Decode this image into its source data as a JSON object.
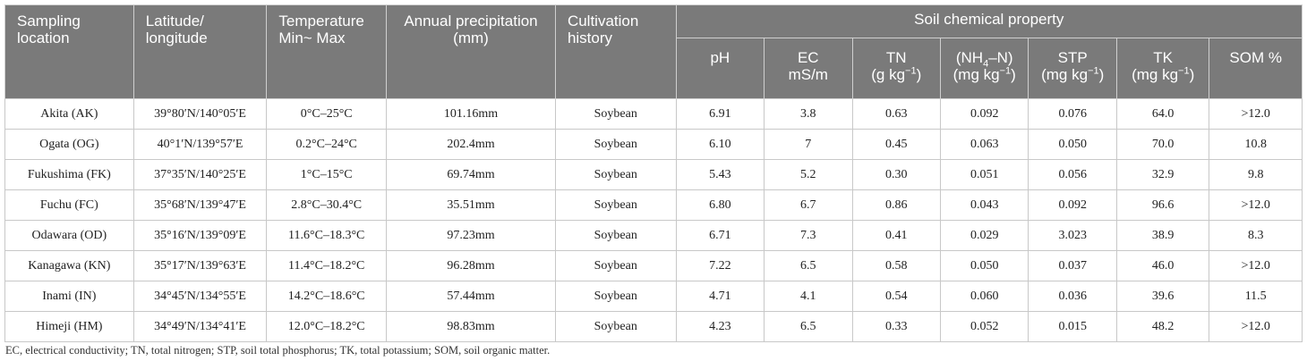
{
  "header": {
    "sampling_location": "Sampling location",
    "lat_long": "Latitude/ longitude",
    "temperature": "Temperature Min~ Max",
    "precipitation": "Annual precipitation (mm)",
    "cultivation": "Cultivation history",
    "soil_group": "Soil chemical property",
    "ph": "pH",
    "ec_1": "EC",
    "ec_2": "mS/m",
    "tn_1": "TN",
    "tn_2": "(g kg",
    "nh4_1a": "(NH",
    "nh4_sub": "4",
    "nh4_1b": "–N)",
    "nh4_2": "(mg kg",
    "stp_1": "STP",
    "stp_2": "(mg kg",
    "tk_1": "TK",
    "tk_2": "(mg kg",
    "sup": "−1",
    "close_paren": ")",
    "som": "SOM %"
  },
  "rows": [
    {
      "location": "Akita (AK)",
      "latlong": "39°80′N/140°05′E",
      "temp": "0°C–25°C",
      "precip": "101.16mm",
      "cultivation": "Soybean",
      "ph": "6.91",
      "ec": "3.8",
      "tn": "0.63",
      "nh4": "0.092",
      "stp": "0.076",
      "tk": "64.0",
      "som": ">12.0"
    },
    {
      "location": "Ogata (OG)",
      "latlong": "40°1′N/139°57′E",
      "temp": "0.2°C–24°C",
      "precip": "202.4mm",
      "cultivation": "Soybean",
      "ph": "6.10",
      "ec": "7",
      "tn": "0.45",
      "nh4": "0.063",
      "stp": "0.050",
      "tk": "70.0",
      "som": "10.8"
    },
    {
      "location": "Fukushima (FK)",
      "latlong": "37°35′N/140°25′E",
      "temp": "1°C–15°C",
      "precip": "69.74mm",
      "cultivation": "Soybean",
      "ph": "5.43",
      "ec": "5.2",
      "tn": "0.30",
      "nh4": "0.051",
      "stp": "0.056",
      "tk": "32.9",
      "som": "9.8"
    },
    {
      "location": "Fuchu (FC)",
      "latlong": "35°68′N/139°47′E",
      "temp": "2.8°C–30.4°C",
      "precip": "35.51mm",
      "cultivation": "Soybean",
      "ph": "6.80",
      "ec": "6.7",
      "tn": "0.86",
      "nh4": "0.043",
      "stp": "0.092",
      "tk": "96.6",
      "som": ">12.0"
    },
    {
      "location": "Odawara (OD)",
      "latlong": "35°16′N/139°09′E",
      "temp": "11.6°C–18.3°C",
      "precip": "97.23mm",
      "cultivation": "Soybean",
      "ph": "6.71",
      "ec": "7.3",
      "tn": "0.41",
      "nh4": "0.029",
      "stp": "3.023",
      "tk": "38.9",
      "som": "8.3"
    },
    {
      "location": "Kanagawa (KN)",
      "latlong": "35°17′N/139°63′E",
      "temp": "11.4°C–18.2°C",
      "precip": "96.28mm",
      "cultivation": "Soybean",
      "ph": "7.22",
      "ec": "6.5",
      "tn": "0.58",
      "nh4": "0.050",
      "stp": "0.037",
      "tk": "46.0",
      "som": ">12.0"
    },
    {
      "location": "Inami (IN)",
      "latlong": "34°45′N/134°55′E",
      "temp": "14.2°C–18.6°C",
      "precip": "57.44mm",
      "cultivation": "Soybean",
      "ph": "4.71",
      "ec": "4.1",
      "tn": "0.54",
      "nh4": "0.060",
      "stp": "0.036",
      "tk": "39.6",
      "som": "11.5"
    },
    {
      "location": "Himeji (HM)",
      "latlong": "34°49′N/134°41′E",
      "temp": "12.0°C–18.2°C",
      "precip": "98.83mm",
      "cultivation": "Soybean",
      "ph": "4.23",
      "ec": "6.5",
      "tn": "0.33",
      "nh4": "0.052",
      "stp": "0.015",
      "tk": "48.2",
      "som": ">12.0"
    }
  ],
  "footnote": "EC, electrical conductivity; TN, total nitrogen; STP, soil total phosphorus; TK, total potassium; SOM, soil organic matter."
}
